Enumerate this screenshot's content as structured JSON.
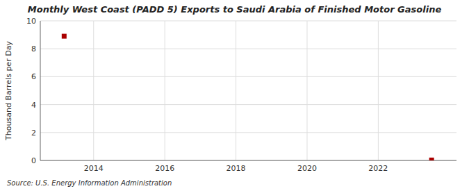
{
  "chart_data": {
    "type": "scatter",
    "title": "Monthly West Coast (PADD 5) Exports to Saudi Arabia of Finished Motor Gasoline",
    "ylabel": "Thousand Barrels per Day",
    "annotations": [
      "Source: U.S. Energy Information Administration"
    ],
    "x": [
      2013.17,
      2023.5
    ],
    "values": [
      8.9,
      0.03
    ],
    "color": "#aa0000",
    "marker": "square",
    "xlim": [
      2012.5,
      2024.2
    ],
    "ylim": [
      0,
      10
    ],
    "xticks": [
      2014,
      2016,
      2018,
      2020,
      2022
    ],
    "yticks": [
      0,
      2,
      4,
      6,
      8,
      10
    ],
    "grid": true
  }
}
